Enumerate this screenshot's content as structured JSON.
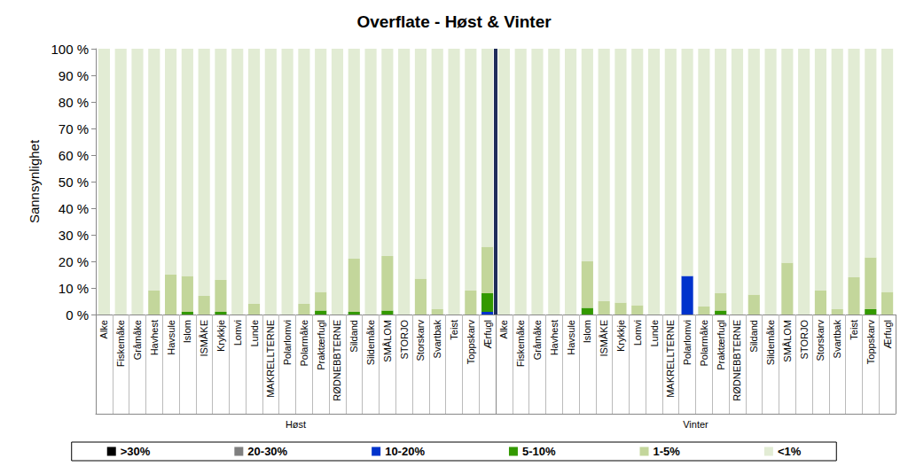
{
  "chart_data": {
    "type": "bar",
    "title": "Overflate - Høst & Vinter",
    "y_label": "Sannsynlighet",
    "stacked": true,
    "grid": false,
    "legend": "bottom",
    "groups": [
      {
        "label": "Høst",
        "categories": [
          "Alke",
          "Fiskemåke",
          "Gråmåke",
          "Havhest",
          "Havsule",
          "Islom",
          "ISMÅKE",
          "Krykkje",
          "Lomvi",
          "Lunde",
          "MAKRELLTERNE",
          "Polarlomvi",
          "Polarmåke",
          "Praktærfugl",
          "RØDNEBBTERNE",
          "Sildand",
          "Sildemåke",
          "SMÅLOM",
          "STORJO",
          "Storskarv",
          "Svartbak",
          "Teist",
          "Toppskarv",
          "Ærfugl"
        ]
      },
      {
        "label": "Vinter",
        "categories": [
          "Alke",
          "Fiskemåke",
          "Gråmåke",
          "Havhest",
          "Havsule",
          "Islom",
          "ISMÅKE",
          "Krykkje",
          "Lomvi",
          "Lunde",
          "MAKRELLTERNE",
          "Polarlomvi",
          "Polarmåke",
          "Praktærfugl",
          "RØDNEBBTERNE",
          "Sildand",
          "Sildemåke",
          "SMÅLOM",
          "STORJO",
          "Storskarv",
          "Svartbak",
          "Teist",
          "Toppskarv",
          "Ærfugl"
        ]
      }
    ],
    "ylim": [
      0,
      100
    ],
    "yticks": [
      {
        "value": 0,
        "label": "0 %"
      },
      {
        "value": 10,
        "label": "10 %"
      },
      {
        "value": 20,
        "label": "20 %"
      },
      {
        "value": 30,
        "label": "30 %"
      },
      {
        "value": 40,
        "label": "40 %"
      },
      {
        "value": 50,
        "label": "50 %"
      },
      {
        "value": 60,
        "label": "60 %"
      },
      {
        "value": 70,
        "label": "70 %"
      },
      {
        "value": 80,
        "label": "80 %"
      },
      {
        "value": 90,
        "label": "90 %"
      },
      {
        "value": 100,
        "label": "100 %"
      }
    ],
    "series": [
      {
        "name": ">30%",
        "color": "#000000",
        "values": [
          0,
          0,
          0,
          0,
          0,
          0,
          0,
          0,
          0,
          0,
          0,
          0,
          0,
          0,
          0,
          0,
          0,
          0,
          0,
          0,
          0,
          0,
          0,
          0,
          0,
          0,
          0,
          0,
          0,
          0,
          0,
          0,
          0,
          0,
          0,
          0,
          0,
          0,
          0,
          0,
          0,
          0,
          0,
          0,
          0,
          0,
          0,
          0
        ]
      },
      {
        "name": "20-30%",
        "color": "#7f7f7f",
        "values": [
          0,
          0,
          0,
          0,
          0,
          0,
          0,
          0,
          0,
          0,
          0,
          0,
          0,
          0,
          0,
          0,
          0,
          0,
          0,
          0,
          0,
          0,
          0,
          0,
          0,
          0,
          0,
          0,
          0,
          0,
          0,
          0,
          0,
          0,
          0,
          0,
          0,
          0,
          0,
          0,
          0,
          0,
          0,
          0,
          0,
          0,
          0,
          0
        ]
      },
      {
        "name": "10-20%",
        "color": "#0033cc",
        "values": [
          0,
          0,
          0,
          0,
          0,
          0,
          0,
          0,
          0,
          0,
          0,
          0,
          0,
          0,
          0,
          0,
          0,
          0,
          0,
          0,
          0,
          0,
          0,
          1,
          0,
          0,
          0,
          0,
          0,
          0,
          0,
          0,
          0,
          0,
          0,
          14.5,
          0,
          0,
          0,
          0,
          0,
          0,
          0,
          0,
          0,
          0,
          0,
          0
        ]
      },
      {
        "name": "5-10%",
        "color": "#339900",
        "values": [
          0,
          0,
          0,
          0,
          0,
          1,
          0,
          1,
          0,
          0,
          0,
          0,
          0,
          1.5,
          0,
          1,
          0,
          1.5,
          0,
          0,
          0,
          0,
          0,
          7,
          0,
          0,
          0,
          0,
          0,
          2.5,
          0,
          0,
          0,
          0,
          0,
          0,
          0,
          1.5,
          0,
          0,
          0,
          0,
          0,
          0,
          0,
          0,
          2,
          0
        ]
      },
      {
        "name": "1-5%",
        "color": "#c3d69b",
        "values": [
          0,
          0,
          0,
          9,
          15,
          13.5,
          7,
          12,
          0,
          4,
          0,
          0,
          4,
          7,
          0,
          20,
          0,
          20.5,
          0,
          13.5,
          2,
          0,
          9,
          17.5,
          0,
          0,
          0,
          0,
          0,
          17.5,
          5,
          4.5,
          3.5,
          0,
          0,
          0,
          3,
          6.5,
          0,
          7.5,
          0,
          19.5,
          0,
          9,
          2,
          14,
          19.5,
          8.5
        ]
      },
      {
        "name": "<1%",
        "color": "#e2ecd4",
        "values": [
          100,
          100,
          100,
          91,
          85,
          85.5,
          93,
          87,
          100,
          96,
          100,
          100,
          96,
          91.5,
          100,
          79,
          100,
          78,
          100,
          86.5,
          98,
          100,
          91,
          74.5,
          100,
          100,
          100,
          100,
          100,
          80,
          95,
          95.5,
          96.5,
          100,
          100,
          85.5,
          97,
          92,
          100,
          92.5,
          100,
          80.5,
          100,
          91,
          98,
          86,
          78.5,
          91.5
        ]
      }
    ]
  }
}
